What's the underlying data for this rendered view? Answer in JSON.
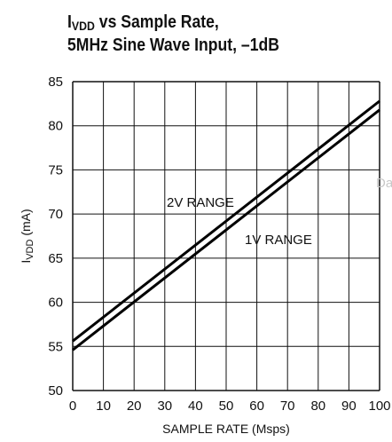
{
  "chart_data": {
    "type": "line",
    "title_main": "I",
    "title_sub": "VDD",
    "title_rest": " vs Sample Rate,",
    "subtitle": "5MHz Sine Wave Input, –1dB",
    "xlabel": "SAMPLE RATE (Msps)",
    "ylabel_main": "I",
    "ylabel_sub": "VDD",
    "ylabel_rest": " (mA)",
    "xlim": [
      0,
      100
    ],
    "ylim": [
      50,
      85
    ],
    "xticks": [
      0,
      10,
      20,
      30,
      40,
      50,
      60,
      70,
      80,
      90,
      100
    ],
    "yticks": [
      50,
      55,
      60,
      65,
      70,
      75,
      80,
      85
    ],
    "grid": true,
    "series": [
      {
        "name": "2V RANGE",
        "x": [
          0,
          100
        ],
        "y": [
          55.6,
          82.8
        ]
      },
      {
        "name": "1V RANGE",
        "x": [
          0,
          100
        ],
        "y": [
          54.6,
          81.8
        ]
      }
    ],
    "watermark": "Da"
  }
}
